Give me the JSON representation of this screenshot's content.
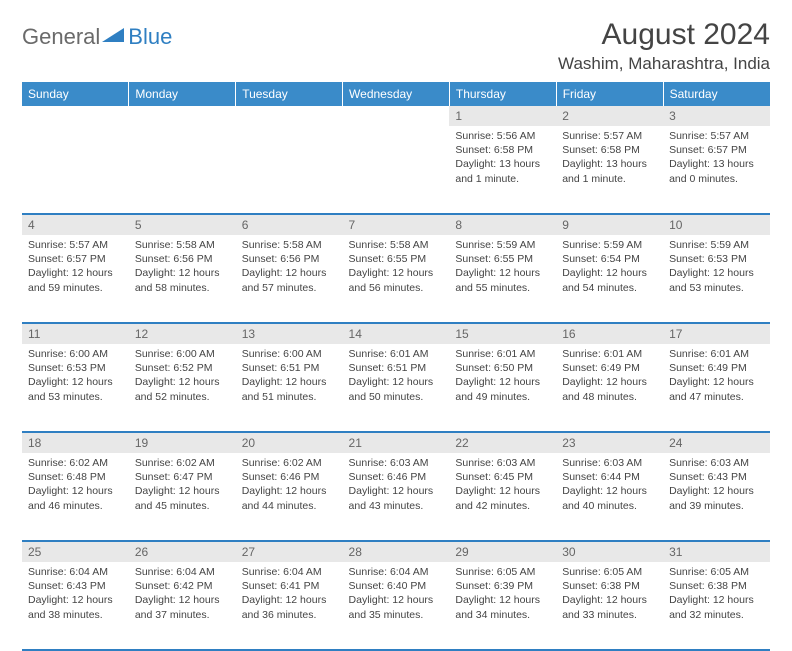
{
  "logo": {
    "general": "General",
    "blue": "Blue"
  },
  "title": "August 2024",
  "location": "Washim, Maharashtra, India",
  "colors": {
    "header_bg": "#3a8bc9",
    "header_text": "#ffffff",
    "daynum_bg": "#e8e8e8",
    "border": "#2f7fc2",
    "logo_gray": "#6a6a6a",
    "logo_blue": "#2f7fc2",
    "body_bg": "#ffffff",
    "text": "#444444"
  },
  "weekdays": [
    "Sunday",
    "Monday",
    "Tuesday",
    "Wednesday",
    "Thursday",
    "Friday",
    "Saturday"
  ],
  "weeks": [
    [
      null,
      null,
      null,
      null,
      {
        "n": "1",
        "sr": "5:56 AM",
        "ss": "6:58 PM",
        "dl": "13 hours and 1 minute."
      },
      {
        "n": "2",
        "sr": "5:57 AM",
        "ss": "6:58 PM",
        "dl": "13 hours and 1 minute."
      },
      {
        "n": "3",
        "sr": "5:57 AM",
        "ss": "6:57 PM",
        "dl": "13 hours and 0 minutes."
      }
    ],
    [
      {
        "n": "4",
        "sr": "5:57 AM",
        "ss": "6:57 PM",
        "dl": "12 hours and 59 minutes."
      },
      {
        "n": "5",
        "sr": "5:58 AM",
        "ss": "6:56 PM",
        "dl": "12 hours and 58 minutes."
      },
      {
        "n": "6",
        "sr": "5:58 AM",
        "ss": "6:56 PM",
        "dl": "12 hours and 57 minutes."
      },
      {
        "n": "7",
        "sr": "5:58 AM",
        "ss": "6:55 PM",
        "dl": "12 hours and 56 minutes."
      },
      {
        "n": "8",
        "sr": "5:59 AM",
        "ss": "6:55 PM",
        "dl": "12 hours and 55 minutes."
      },
      {
        "n": "9",
        "sr": "5:59 AM",
        "ss": "6:54 PM",
        "dl": "12 hours and 54 minutes."
      },
      {
        "n": "10",
        "sr": "5:59 AM",
        "ss": "6:53 PM",
        "dl": "12 hours and 53 minutes."
      }
    ],
    [
      {
        "n": "11",
        "sr": "6:00 AM",
        "ss": "6:53 PM",
        "dl": "12 hours and 53 minutes."
      },
      {
        "n": "12",
        "sr": "6:00 AM",
        "ss": "6:52 PM",
        "dl": "12 hours and 52 minutes."
      },
      {
        "n": "13",
        "sr": "6:00 AM",
        "ss": "6:51 PM",
        "dl": "12 hours and 51 minutes."
      },
      {
        "n": "14",
        "sr": "6:01 AM",
        "ss": "6:51 PM",
        "dl": "12 hours and 50 minutes."
      },
      {
        "n": "15",
        "sr": "6:01 AM",
        "ss": "6:50 PM",
        "dl": "12 hours and 49 minutes."
      },
      {
        "n": "16",
        "sr": "6:01 AM",
        "ss": "6:49 PM",
        "dl": "12 hours and 48 minutes."
      },
      {
        "n": "17",
        "sr": "6:01 AM",
        "ss": "6:49 PM",
        "dl": "12 hours and 47 minutes."
      }
    ],
    [
      {
        "n": "18",
        "sr": "6:02 AM",
        "ss": "6:48 PM",
        "dl": "12 hours and 46 minutes."
      },
      {
        "n": "19",
        "sr": "6:02 AM",
        "ss": "6:47 PM",
        "dl": "12 hours and 45 minutes."
      },
      {
        "n": "20",
        "sr": "6:02 AM",
        "ss": "6:46 PM",
        "dl": "12 hours and 44 minutes."
      },
      {
        "n": "21",
        "sr": "6:03 AM",
        "ss": "6:46 PM",
        "dl": "12 hours and 43 minutes."
      },
      {
        "n": "22",
        "sr": "6:03 AM",
        "ss": "6:45 PM",
        "dl": "12 hours and 42 minutes."
      },
      {
        "n": "23",
        "sr": "6:03 AM",
        "ss": "6:44 PM",
        "dl": "12 hours and 40 minutes."
      },
      {
        "n": "24",
        "sr": "6:03 AM",
        "ss": "6:43 PM",
        "dl": "12 hours and 39 minutes."
      }
    ],
    [
      {
        "n": "25",
        "sr": "6:04 AM",
        "ss": "6:43 PM",
        "dl": "12 hours and 38 minutes."
      },
      {
        "n": "26",
        "sr": "6:04 AM",
        "ss": "6:42 PM",
        "dl": "12 hours and 37 minutes."
      },
      {
        "n": "27",
        "sr": "6:04 AM",
        "ss": "6:41 PM",
        "dl": "12 hours and 36 minutes."
      },
      {
        "n": "28",
        "sr": "6:04 AM",
        "ss": "6:40 PM",
        "dl": "12 hours and 35 minutes."
      },
      {
        "n": "29",
        "sr": "6:05 AM",
        "ss": "6:39 PM",
        "dl": "12 hours and 34 minutes."
      },
      {
        "n": "30",
        "sr": "6:05 AM",
        "ss": "6:38 PM",
        "dl": "12 hours and 33 minutes."
      },
      {
        "n": "31",
        "sr": "6:05 AM",
        "ss": "6:38 PM",
        "dl": "12 hours and 32 minutes."
      }
    ]
  ],
  "labels": {
    "sunrise": "Sunrise: ",
    "sunset": "Sunset: ",
    "daylight": "Daylight: "
  }
}
